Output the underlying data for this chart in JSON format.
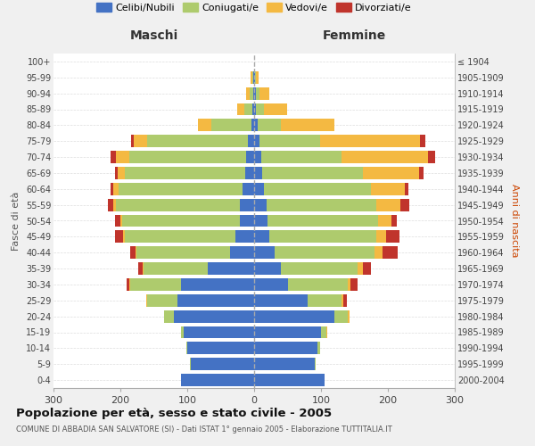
{
  "age_groups": [
    "0-4",
    "5-9",
    "10-14",
    "15-19",
    "20-24",
    "25-29",
    "30-34",
    "35-39",
    "40-44",
    "45-49",
    "50-54",
    "55-59",
    "60-64",
    "65-69",
    "70-74",
    "75-79",
    "80-84",
    "85-89",
    "90-94",
    "95-99",
    "100+"
  ],
  "birth_years": [
    "2000-2004",
    "1995-1999",
    "1990-1994",
    "1985-1989",
    "1980-1984",
    "1975-1979",
    "1970-1974",
    "1965-1969",
    "1960-1964",
    "1955-1959",
    "1950-1954",
    "1945-1949",
    "1940-1944",
    "1935-1939",
    "1930-1934",
    "1925-1929",
    "1920-1924",
    "1915-1919",
    "1910-1914",
    "1905-1909",
    "≤ 1904"
  ],
  "males": {
    "celibi": [
      110,
      95,
      100,
      105,
      120,
      115,
      110,
      70,
      36,
      28,
      22,
      22,
      18,
      14,
      12,
      10,
      4,
      3,
      2,
      1,
      0
    ],
    "coniugati": [
      0,
      1,
      2,
      5,
      15,
      45,
      75,
      95,
      140,
      165,
      175,
      185,
      185,
      180,
      175,
      150,
      60,
      12,
      5,
      2,
      0
    ],
    "vedovi": [
      0,
      0,
      0,
      0,
      0,
      1,
      2,
      2,
      2,
      3,
      3,
      4,
      8,
      10,
      20,
      20,
      20,
      10,
      5,
      2,
      0
    ],
    "divorziati": [
      0,
      0,
      0,
      0,
      0,
      0,
      4,
      6,
      8,
      12,
      8,
      8,
      4,
      4,
      8,
      4,
      0,
      0,
      0,
      0,
      0
    ]
  },
  "females": {
    "nubili": [
      105,
      90,
      95,
      100,
      120,
      80,
      50,
      40,
      30,
      22,
      20,
      18,
      15,
      12,
      10,
      8,
      5,
      2,
      2,
      1,
      0
    ],
    "coniugate": [
      0,
      2,
      3,
      8,
      20,
      50,
      90,
      115,
      150,
      160,
      165,
      165,
      160,
      150,
      120,
      90,
      35,
      12,
      6,
      2,
      0
    ],
    "vedove": [
      0,
      0,
      0,
      1,
      2,
      3,
      4,
      8,
      12,
      15,
      20,
      35,
      50,
      85,
      130,
      150,
      80,
      35,
      15,
      4,
      0
    ],
    "divorziate": [
      0,
      0,
      0,
      0,
      0,
      6,
      10,
      12,
      22,
      20,
      8,
      14,
      6,
      6,
      10,
      8,
      0,
      0,
      0,
      0,
      0
    ]
  },
  "colors": {
    "celibi_nubili": "#4472C4",
    "coniugati": "#AECB6D",
    "vedovi": "#F4B942",
    "divorziati": "#C0342C"
  },
  "title": "Popolazione per età, sesso e stato civile - 2005",
  "subtitle": "COMUNE DI ABBADIA SAN SALVATORE (SI) - Dati ISTAT 1° gennaio 2005 - Elaborazione TUTTITALIA.IT",
  "xlabel_left": "Maschi",
  "xlabel_right": "Femmine",
  "ylabel_left": "Fasce di età",
  "ylabel_right": "Anni di nascita",
  "xlim": 300,
  "bg_color": "#f0f0f0",
  "bar_bg": "#ffffff",
  "legend_labels": [
    "Celibi/Nubili",
    "Coniugati/e",
    "Vedovi/e",
    "Divorziati/e"
  ]
}
